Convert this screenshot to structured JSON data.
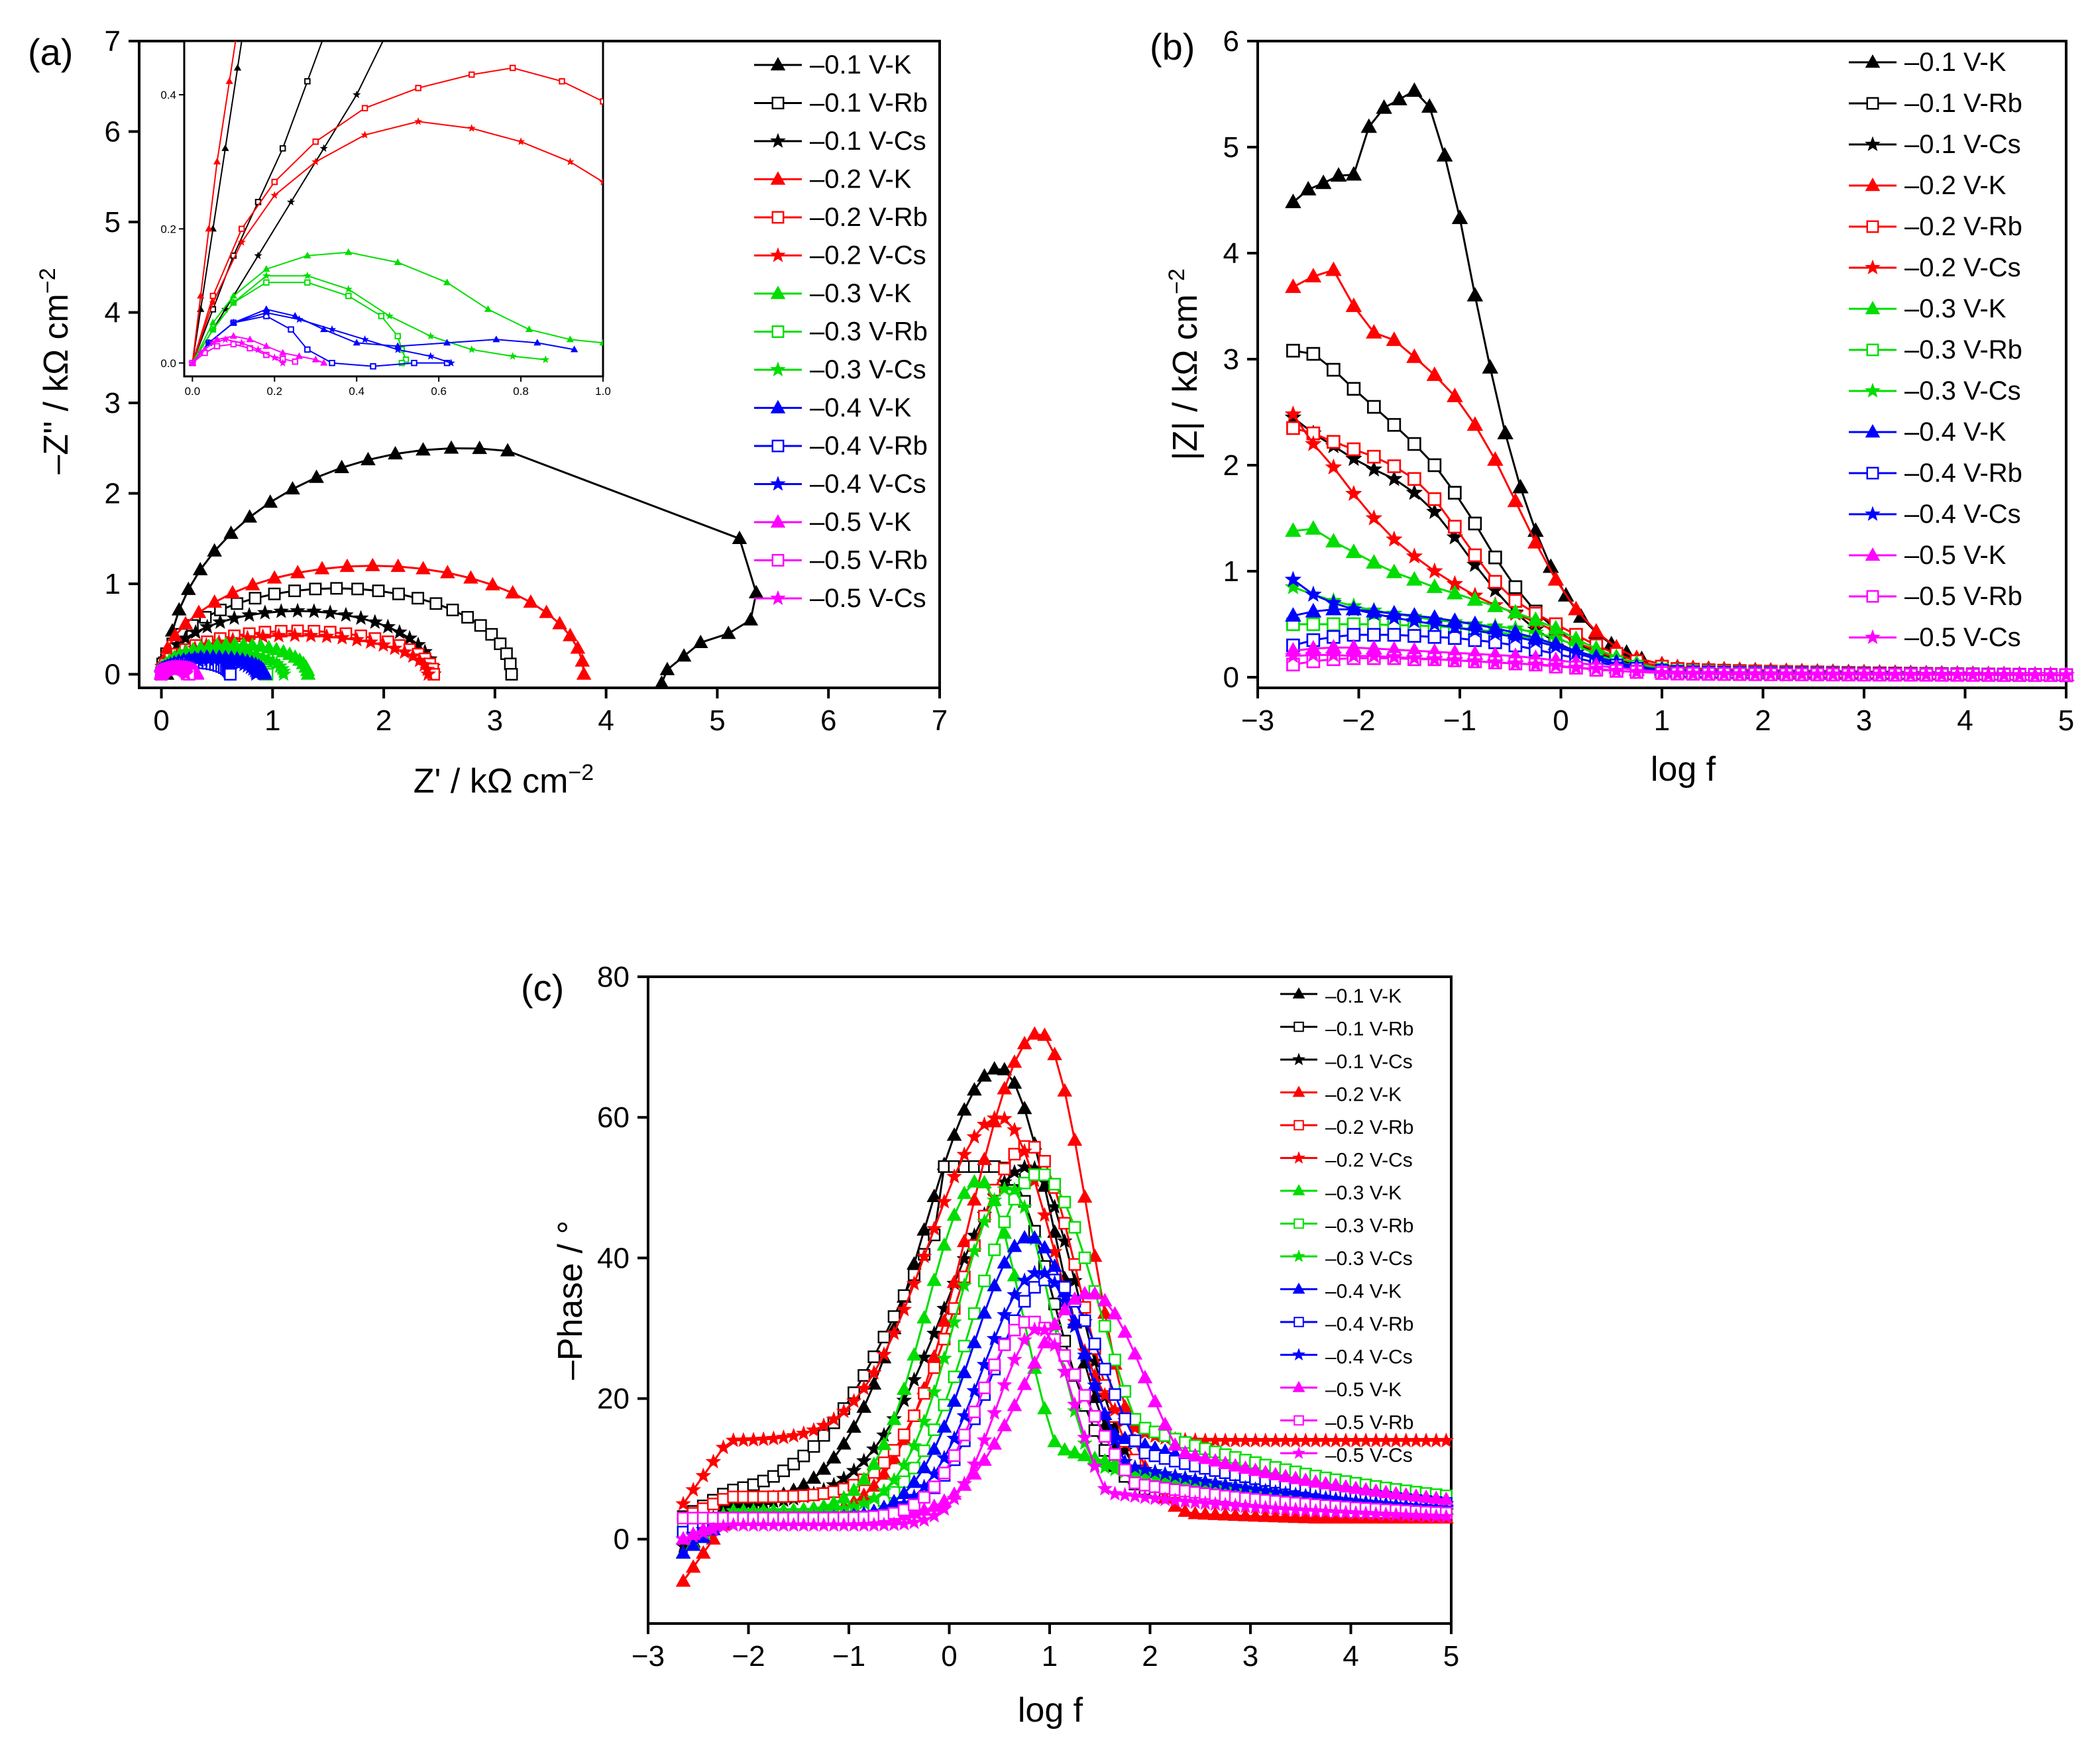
{
  "colors": {
    "K-01": "#000000",
    "Rb-01": "#000000",
    "Cs-01": "#000000",
    "K-02": "#ff0000",
    "Rb-02": "#ff0000",
    "Cs-02": "#ff0000",
    "K-03": "#00dd00",
    "Rb-03": "#00dd00",
    "Cs-03": "#00dd00",
    "K-04": "#0000ff",
    "Rb-04": "#0000ff",
    "Cs-04": "#0000ff",
    "K-05": "#ff00ff",
    "Rb-05": "#ff00ff",
    "Cs-05": "#ff00ff"
  },
  "legend": [
    "–0.1 V-K",
    "–0.1 V-Rb",
    "–0.1 V-Cs",
    "–0.2 V-K",
    "–0.2 V-Rb",
    "–0.2 V-Cs",
    "–0.3 V-K",
    "–0.3 V-Rb",
    "–0.3 V-Cs",
    "–0.4 V-K",
    "–0.4 V-Rb",
    "–0.4 V-Cs",
    "–0.5 V-K",
    "–0.5 V-Rb",
    "–0.5 V-Cs"
  ],
  "chart_data": [
    {
      "panel": "(a)",
      "type": "scatter",
      "xlabel": "Z' / kΩ cm",
      "ylabel": "–Z'' / kΩ cm",
      "unit_superscript": "−2",
      "xlim": [
        -0.2,
        7
      ],
      "ylim": [
        -0.15,
        7
      ],
      "xticks": [
        "0",
        "1",
        "2",
        "3",
        "4",
        "5",
        "6",
        "7"
      ],
      "yticks": [
        "0",
        "1",
        "2",
        "3",
        "4",
        "5",
        "6",
        "7"
      ],
      "inset": {
        "xlim": [
          -0.02,
          1.0
        ],
        "ylim": [
          -0.02,
          0.48
        ],
        "xticks": [
          "0.0",
          "0.2",
          "0.4",
          "0.6",
          "0.8",
          "1.0"
        ],
        "yticks": [
          "0.0",
          "0.2",
          "0.4"
        ]
      },
      "series": [
        {
          "name": "–0.1 V-K",
          "rct": 4.5,
          "peak": 2.5,
          "loop": true
        },
        {
          "name": "–0.1 V-Rb",
          "rct": 3.15,
          "peak": 0.95
        },
        {
          "name": "–0.1 V-Cs",
          "rct": 2.45,
          "peak": 0.7
        },
        {
          "name": "–0.2 V-K",
          "rct": 3.8,
          "peak": 1.2
        },
        {
          "name": "–0.2 V-Rb",
          "rct": 2.45,
          "peak": 0.48
        },
        {
          "name": "–0.2 V-Cs",
          "rct": 2.4,
          "peak": 0.43
        },
        {
          "name": "–0.3 V-K",
          "rct": 1.32,
          "peak": 0.33
        },
        {
          "name": "–0.3 V-Rb",
          "rct": 0.95,
          "peak": 0.2
        },
        {
          "name": "–0.3 V-Cs",
          "rct": 1.1,
          "peak": 0.25
        },
        {
          "name": "–0.4 V-K",
          "rct": 0.93,
          "peak": 0.19
        },
        {
          "name": "–0.4 V-Rb",
          "rct": 0.62,
          "peak": 0.13
        },
        {
          "name": "–0.4 V-Cs",
          "rct": 0.85,
          "peak": 0.16
        },
        {
          "name": "–0.5 V-K",
          "rct": 0.32,
          "peak": 0.08
        },
        {
          "name": "–0.5 V-Rb",
          "rct": 0.25,
          "peak": 0.07
        },
        {
          "name": "–0.5 V-Cs",
          "rct": 0.22,
          "peak": 0.07
        }
      ]
    },
    {
      "panel": "(b)",
      "type": "scatter",
      "xlabel": "log f",
      "ylabel": "|Z| / kΩ cm",
      "unit_superscript": "−2",
      "xlim": [
        -3,
        5
      ],
      "ylim": [
        -0.1,
        6
      ],
      "xticks": [
        "−3",
        "−2",
        "−1",
        "0",
        "1",
        "2",
        "3",
        "4",
        "5"
      ],
      "yticks": [
        "0",
        "1",
        "2",
        "3",
        "4",
        "5",
        "6"
      ],
      "series": [
        {
          "name": "–0.1 V-K",
          "x": [
            -2.65,
            -2.5,
            -2.35,
            -2.2,
            -2.05,
            -1.9,
            -1.75,
            -1.6,
            -1.45,
            -1.3,
            -1.15,
            -1.0,
            -0.85,
            -0.7,
            -0.55,
            -0.4,
            -0.25,
            -0.1,
            0.05,
            0.2,
            0.35,
            0.5,
            0.65,
            0.8,
            1.0
          ],
          "y": [
            4.48,
            4.6,
            4.66,
            4.73,
            4.74,
            5.19,
            5.37,
            5.45,
            5.53,
            5.38,
            4.92,
            4.33,
            3.6,
            2.92,
            2.3,
            1.79,
            1.38,
            1.04,
            0.77,
            0.57,
            0.42,
            0.31,
            0.23,
            0.17,
            0.12
          ]
        },
        {
          "name": "–0.1 V-Rb",
          "x": [
            -2.65,
            -2.45,
            -2.25,
            -2.05,
            -1.85,
            -1.65,
            -1.45,
            -1.25,
            -1.05,
            -0.85,
            -0.65,
            -0.45,
            -0.25,
            -0.05,
            0.15,
            0.35,
            0.55,
            0.75,
            1.0
          ],
          "y": [
            3.08,
            3.05,
            2.9,
            2.72,
            2.55,
            2.38,
            2.2,
            2.0,
            1.74,
            1.45,
            1.13,
            0.85,
            0.62,
            0.45,
            0.32,
            0.23,
            0.16,
            0.12,
            0.09
          ]
        },
        {
          "name": "–0.1 V-Cs",
          "x": [
            -2.65,
            -2.45,
            -2.25,
            -2.05,
            -1.85,
            -1.65,
            -1.45,
            -1.25,
            -1.05,
            -0.85,
            -0.65,
            -0.45,
            -0.25,
            -0.05,
            0.15,
            0.35,
            0.55,
            0.75,
            1.0
          ],
          "y": [
            2.45,
            2.3,
            2.18,
            2.06,
            1.96,
            1.87,
            1.74,
            1.56,
            1.32,
            1.06,
            0.82,
            0.61,
            0.45,
            0.33,
            0.24,
            0.17,
            0.12,
            0.09,
            0.07
          ]
        },
        {
          "name": "–0.2 V-K",
          "x": [
            -2.65,
            -2.45,
            -2.25,
            -2.05,
            -1.85,
            -1.65,
            -1.45,
            -1.25,
            -1.05,
            -0.85,
            -0.65,
            -0.45,
            -0.25,
            -0.05,
            0.15,
            0.35,
            0.55,
            0.75,
            1.0
          ],
          "y": [
            3.68,
            3.78,
            3.84,
            3.5,
            3.25,
            3.18,
            3.02,
            2.85,
            2.65,
            2.38,
            2.05,
            1.66,
            1.27,
            0.92,
            0.64,
            0.43,
            0.28,
            0.18,
            0.12
          ]
        },
        {
          "name": "–0.2 V-Rb",
          "x": [
            -2.65,
            -2.45,
            -2.25,
            -2.05,
            -1.85,
            -1.65,
            -1.45,
            -1.25,
            -1.05,
            -0.85,
            -0.65,
            -0.45,
            -0.25,
            -0.05,
            0.15,
            0.35,
            0.55,
            0.75,
            1.0
          ],
          "y": [
            2.35,
            2.3,
            2.22,
            2.15,
            2.08,
            1.99,
            1.87,
            1.68,
            1.42,
            1.15,
            0.9,
            0.72,
            0.6,
            0.5,
            0.4,
            0.3,
            0.22,
            0.15,
            0.1
          ]
        },
        {
          "name": "–0.2 V-Cs",
          "x": [
            -2.65,
            -2.45,
            -2.25,
            -2.05,
            -1.85,
            -1.65,
            -1.45,
            -1.25,
            -1.05,
            -0.85,
            -0.65,
            -0.45,
            -0.25,
            -0.05,
            0.15,
            0.35,
            0.55,
            0.75,
            1.0
          ],
          "y": [
            2.48,
            2.2,
            1.98,
            1.73,
            1.5,
            1.3,
            1.14,
            1.0,
            0.88,
            0.77,
            0.68,
            0.6,
            0.52,
            0.43,
            0.33,
            0.25,
            0.18,
            0.13,
            0.09
          ]
        },
        {
          "name": "–0.3 V-K",
          "x": [
            -2.65,
            -2.45,
            -2.25,
            -2.05,
            -1.85,
            -1.65,
            -1.45,
            -1.25,
            -1.05,
            -0.85,
            -0.65,
            -0.45,
            -0.25,
            -0.05,
            0.15,
            0.35,
            0.55,
            0.75,
            1.0
          ],
          "y": [
            1.38,
            1.4,
            1.28,
            1.18,
            1.08,
            0.99,
            0.92,
            0.85,
            0.79,
            0.73,
            0.67,
            0.61,
            0.54,
            0.46,
            0.36,
            0.27,
            0.19,
            0.13,
            0.08
          ]
        },
        {
          "name": "–0.3 V-Rb",
          "x": [
            -2.65,
            -2.45,
            -2.25,
            -2.05,
            -1.85,
            -1.65,
            -1.45,
            -1.25,
            -1.05,
            -0.85,
            -0.65,
            -0.45,
            -0.25,
            -0.05,
            0.15,
            0.35,
            0.55,
            0.75,
            1.0
          ],
          "y": [
            0.5,
            0.5,
            0.5,
            0.5,
            0.5,
            0.49,
            0.49,
            0.48,
            0.47,
            0.45,
            0.43,
            0.4,
            0.36,
            0.31,
            0.25,
            0.19,
            0.14,
            0.1,
            0.07
          ]
        },
        {
          "name": "–0.3 V-Cs",
          "x": [
            -2.65,
            -2.45,
            -2.25,
            -2.05,
            -1.85,
            -1.65,
            -1.45,
            -1.25,
            -1.05,
            -0.85,
            -0.65,
            -0.45,
            -0.25,
            -0.05,
            0.15,
            0.35,
            0.55,
            0.75,
            1.0
          ],
          "y": [
            0.85,
            0.78,
            0.72,
            0.67,
            0.63,
            0.6,
            0.57,
            0.54,
            0.52,
            0.5,
            0.48,
            0.46,
            0.42,
            0.37,
            0.3,
            0.22,
            0.15,
            0.1,
            0.07
          ]
        },
        {
          "name": "–0.4 V-K",
          "x": [
            -2.65,
            -2.45,
            -2.25,
            -2.05,
            -1.85,
            -1.65,
            -1.45,
            -1.25,
            -1.05,
            -0.85,
            -0.65,
            -0.45,
            -0.25,
            -0.05,
            0.15,
            0.35,
            0.55,
            0.75,
            1.0
          ],
          "y": [
            0.58,
            0.62,
            0.64,
            0.64,
            0.62,
            0.6,
            0.58,
            0.56,
            0.53,
            0.5,
            0.46,
            0.42,
            0.37,
            0.31,
            0.25,
            0.19,
            0.14,
            0.1,
            0.07
          ]
        },
        {
          "name": "–0.4 V-Rb",
          "x": [
            -2.65,
            -2.45,
            -2.25,
            -2.05,
            -1.85,
            -1.65,
            -1.45,
            -1.25,
            -1.05,
            -0.85,
            -0.65,
            -0.45,
            -0.25,
            -0.05,
            0.15,
            0.35,
            0.55,
            0.75,
            1.0
          ],
          "y": [
            0.3,
            0.35,
            0.38,
            0.4,
            0.4,
            0.4,
            0.39,
            0.38,
            0.37,
            0.35,
            0.33,
            0.3,
            0.26,
            0.22,
            0.18,
            0.14,
            0.11,
            0.08,
            0.06
          ]
        },
        {
          "name": "–0.4 V-Cs",
          "x": [
            -2.65,
            -2.45,
            -2.25,
            -2.05,
            -1.85,
            -1.65,
            -1.45,
            -1.25,
            -1.05,
            -0.85,
            -0.65,
            -0.45,
            -0.25,
            -0.05,
            0.15,
            0.35,
            0.55,
            0.75,
            1.0
          ],
          "y": [
            0.92,
            0.78,
            0.7,
            0.64,
            0.6,
            0.56,
            0.53,
            0.5,
            0.47,
            0.44,
            0.41,
            0.38,
            0.34,
            0.29,
            0.23,
            0.17,
            0.12,
            0.09,
            0.06
          ]
        },
        {
          "name": "–0.5 V-K",
          "x": [
            -2.65,
            -2.45,
            -2.25,
            -2.05,
            -1.85,
            -1.65,
            -1.45,
            -1.25,
            -1.05,
            -0.85,
            -0.65,
            -0.45,
            -0.25,
            -0.05,
            0.15,
            0.35,
            0.55,
            0.75,
            1.0
          ],
          "y": [
            0.25,
            0.27,
            0.28,
            0.28,
            0.27,
            0.26,
            0.25,
            0.24,
            0.23,
            0.22,
            0.21,
            0.2,
            0.18,
            0.16,
            0.14,
            0.11,
            0.09,
            0.07,
            0.05
          ]
        },
        {
          "name": "–0.5 V-Rb",
          "x": [
            -2.65,
            -2.45,
            -2.25,
            -2.05,
            -1.85,
            -1.65,
            -1.45,
            -1.25,
            -1.05,
            -0.85,
            -0.65,
            -0.45,
            -0.25,
            -0.05,
            0.15,
            0.35,
            0.55,
            0.75,
            1.0
          ],
          "y": [
            0.12,
            0.15,
            0.17,
            0.18,
            0.18,
            0.18,
            0.17,
            0.17,
            0.16,
            0.15,
            0.14,
            0.13,
            0.12,
            0.1,
            0.09,
            0.07,
            0.06,
            0.05,
            0.04
          ]
        },
        {
          "name": "–0.5 V-Cs",
          "x": [
            -2.65,
            -2.45,
            -2.25,
            -2.05,
            -1.85,
            -1.65,
            -1.45,
            -1.25,
            -1.05,
            -0.85,
            -0.65,
            -0.45,
            -0.25,
            -0.05,
            0.15,
            0.35,
            0.55,
            0.75,
            1.0
          ],
          "y": [
            0.2,
            0.21,
            0.21,
            0.2,
            0.2,
            0.19,
            0.18,
            0.17,
            0.16,
            0.15,
            0.14,
            0.13,
            0.12,
            0.11,
            0.09,
            0.08,
            0.06,
            0.05,
            0.04
          ]
        }
      ],
      "tail": {
        "x_from": 1.0,
        "x_to": 5.0,
        "y_from": 0.07,
        "y_to": 0.02
      }
    },
    {
      "panel": "(c)",
      "type": "scatter",
      "xlabel": "log f",
      "ylabel": "–Phase / °",
      "xlim": [
        -3,
        5
      ],
      "ylim": [
        -12,
        80
      ],
      "xticks": [
        "−3",
        "−2",
        "−1",
        "0",
        "1",
        "2",
        "3",
        "4",
        "5"
      ],
      "yticks": [
        "0",
        "20",
        "40",
        "60",
        "80"
      ],
      "series": [
        {
          "name": "–0.1 V-K",
          "start": -2,
          "low": 5,
          "peak": 67,
          "center": 0.5,
          "wl": 1.1,
          "wr": 0.8,
          "tail": 1.8
        },
        {
          "name": "–0.1 V-Rb",
          "start": 3,
          "low": 6,
          "peak": 53,
          "center": 0.5,
          "wl": 1.35,
          "wr": 0.75,
          "tail": 1.5,
          "flat": 0.6
        },
        {
          "name": "–0.1 V-Cs",
          "start": -1,
          "low": 5,
          "peak": 53,
          "center": 0.8,
          "wl": 1.15,
          "wr": 0.7,
          "tail": 1.8
        },
        {
          "name": "–0.2 V-K",
          "start": -6,
          "low": 3,
          "peak": 72,
          "center": 0.9,
          "wl": 1.0,
          "wr": 0.7,
          "tail": 0.5
        },
        {
          "name": "–0.2 V-Rb",
          "start": 3,
          "low": 6,
          "peak": 56,
          "center": 0.8,
          "wl": 0.95,
          "wr": 0.7,
          "tail": 1.0
        },
        {
          "name": "–0.2 V-Cs",
          "start": 5,
          "low": 14,
          "peak": 60,
          "center": 0.5,
          "wl": 1.0,
          "wr": 0.75,
          "tail": 1.0
        },
        {
          "name": "–0.3 V-K",
          "start": -2,
          "low": 4,
          "peak": 51,
          "center": 0.3,
          "wl": 0.75,
          "wr": 0.6,
          "tail": 2.5
        },
        {
          "name": "–0.3 V-Rb",
          "start": 2,
          "low": 3,
          "peak": 52,
          "center": 0.9,
          "wl": 0.9,
          "wr": 0.85,
          "tail": 3.5
        },
        {
          "name": "–0.3 V-Cs",
          "start": 0,
          "low": 4,
          "peak": 50,
          "center": 0.6,
          "wl": 0.75,
          "wr": 0.6,
          "tail": 2.0
        },
        {
          "name": "–0.4 V-K",
          "start": -2,
          "low": 3,
          "peak": 43,
          "center": 0.8,
          "wl": 0.8,
          "wr": 0.75,
          "tail": 3.0
        },
        {
          "name": "–0.4 V-Rb",
          "start": 1,
          "low": 3,
          "peak": 37,
          "center": 1.0,
          "wl": 0.8,
          "wr": 0.8,
          "tail": 2.5
        },
        {
          "name": "–0.4 V-Cs",
          "start": 0,
          "low": 3,
          "peak": 38,
          "center": 0.9,
          "wl": 0.8,
          "wr": 0.7,
          "tail": 2.0
        },
        {
          "name": "–0.5 V-K",
          "start": 0,
          "low": 3,
          "peak": 35,
          "center": 1.4,
          "wl": 0.9,
          "wr": 0.8,
          "tail": 2.5
        },
        {
          "name": "–0.5 V-Rb",
          "start": 3,
          "low": 3,
          "peak": 31,
          "center": 0.8,
          "wl": 0.7,
          "wr": 0.8,
          "tail": 1.5
        },
        {
          "name": "–0.5 V-Cs",
          "start": 0,
          "low": 2,
          "peak": 30,
          "center": 0.9,
          "wl": 0.6,
          "wr": 0.5,
          "tail": 1.0
        }
      ]
    }
  ]
}
